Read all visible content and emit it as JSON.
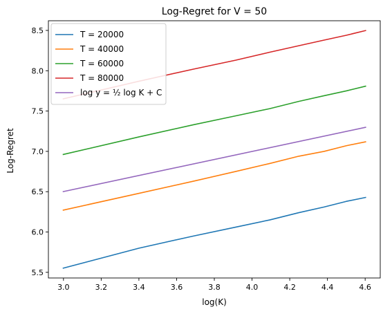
{
  "chart_data": {
    "type": "line",
    "title": "Log-Regret for V = 50",
    "xlabel": "log(K)",
    "ylabel": "Log-Regret",
    "xlim": [
      2.92,
      4.68
    ],
    "ylim": [
      5.43,
      8.62
    ],
    "xticks": [
      3.0,
      3.2,
      3.4,
      3.6,
      3.8,
      4.0,
      4.2,
      4.4,
      4.6
    ],
    "xtick_labels": [
      "3.0",
      "3.2",
      "3.4",
      "3.6",
      "3.8",
      "4.0",
      "4.2",
      "4.4",
      "4.6"
    ],
    "yticks": [
      5.5,
      6.0,
      6.5,
      7.0,
      7.5,
      8.0,
      8.5
    ],
    "ytick_labels": [
      "5.5",
      "6.0",
      "6.5",
      "7.0",
      "7.5",
      "8.0",
      "8.5"
    ],
    "grid": false,
    "legend_position": "top-left",
    "series": [
      {
        "name": "T = 20000",
        "color": "#1f77b4",
        "x": [
          2.996,
          3.401,
          3.689,
          3.912,
          4.094,
          4.248,
          4.382,
          4.5,
          4.605
        ],
        "y": [
          5.55,
          5.8,
          5.95,
          6.06,
          6.15,
          6.24,
          6.31,
          6.38,
          6.43
        ]
      },
      {
        "name": "T = 40000",
        "color": "#ff7f0e",
        "x": [
          2.996,
          3.401,
          3.689,
          3.912,
          4.094,
          4.248,
          4.382,
          4.5,
          4.605
        ],
        "y": [
          6.27,
          6.48,
          6.63,
          6.75,
          6.85,
          6.94,
          7.0,
          7.07,
          7.12
        ]
      },
      {
        "name": "T = 60000",
        "color": "#2ca02c",
        "x": [
          2.996,
          3.401,
          3.689,
          3.912,
          4.094,
          4.248,
          4.382,
          4.5,
          4.605
        ],
        "y": [
          6.96,
          7.18,
          7.33,
          7.44,
          7.53,
          7.62,
          7.69,
          7.75,
          7.81
        ]
      },
      {
        "name": "T = 80000",
        "color": "#d62728",
        "x": [
          2.996,
          3.401,
          3.689,
          3.912,
          4.094,
          4.248,
          4.382,
          4.5,
          4.605
        ],
        "y": [
          7.65,
          7.87,
          8.02,
          8.13,
          8.23,
          8.31,
          8.38,
          8.44,
          8.5
        ]
      },
      {
        "name": "log y = ½ log K + C",
        "color": "#9467bd",
        "x": [
          2.996,
          4.605
        ],
        "y": [
          6.5,
          7.3
        ]
      }
    ]
  }
}
